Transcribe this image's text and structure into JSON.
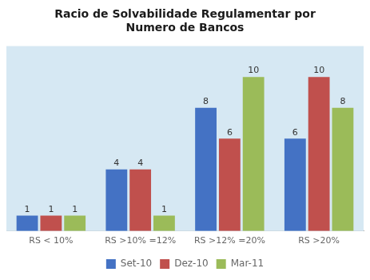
{
  "chart_data": {
    "type": "bar",
    "title": "Racio de Solvabilidade Regulamentar por\nNumero de Bancos",
    "categories": [
      "RS < 10%",
      "RS >10% =12%",
      "RS >12% =20%",
      "RS >20%"
    ],
    "series": [
      {
        "name": "Set-10",
        "color": "#4472C4",
        "values": [
          1,
          4,
          8,
          6
        ]
      },
      {
        "name": "Dez-10",
        "color": "#C0504D",
        "values": [
          1,
          4,
          6,
          10
        ]
      },
      {
        "name": "Mar-11",
        "color": "#9BBB59",
        "values": [
          1,
          1,
          10,
          8
        ]
      }
    ],
    "ylim": [
      0,
      12
    ],
    "grid": false,
    "legend": "bottom",
    "data_labels": true,
    "tick_labels": "x"
  }
}
